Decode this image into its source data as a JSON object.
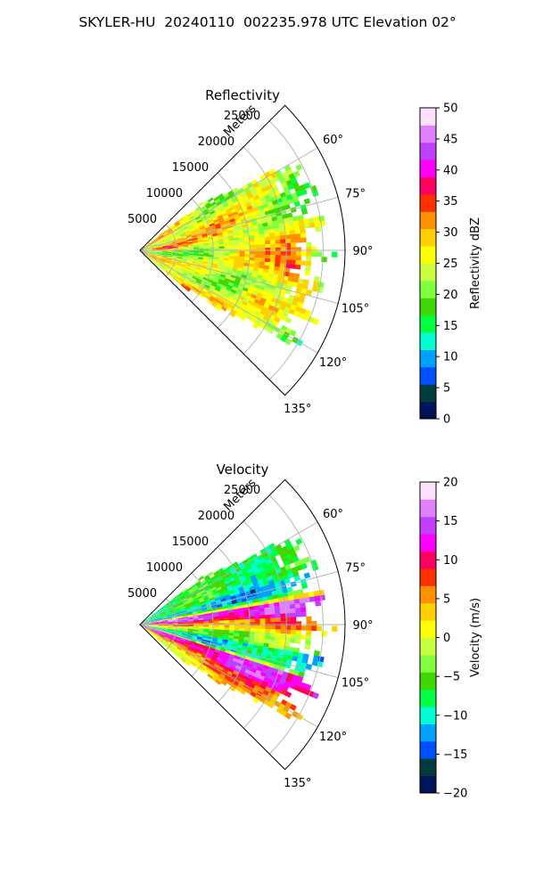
{
  "suptitle": "SKYLER-HU  20240110  002235.978 UTC Elevation 02°",
  "colors": {
    "reflectivity_scale": [
      "#00145a",
      "#003c3c",
      "#0050ff",
      "#00a0ff",
      "#00ffd0",
      "#00ff40",
      "#40d800",
      "#80ff40",
      "#c8ff40",
      "#ffff00",
      "#ffd000",
      "#ff9000",
      "#ff3000",
      "#ff0060",
      "#ff00ff",
      "#c040ff",
      "#e080ff",
      "#ffe0ff"
    ],
    "velocity_scale": [
      "#00145a",
      "#003c3c",
      "#0050ff",
      "#00a0ff",
      "#00ffd0",
      "#00ff40",
      "#40d800",
      "#80ff40",
      "#c8ff40",
      "#ffff00",
      "#ffd000",
      "#ff9000",
      "#ff3000",
      "#ff0060",
      "#ff00ff",
      "#c040ff",
      "#e080ff",
      "#ffe0ff"
    ]
  },
  "chart_data": [
    {
      "type": "heatmap",
      "title": "Reflectivity",
      "projection": "polar-sector",
      "theta_range_deg": [
        45,
        135
      ],
      "r_range_m": [
        0,
        28000
      ],
      "radial_ticks": [
        "5000",
        "10000",
        "15000",
        "20000",
        "25000"
      ],
      "radial_tick_values": [
        5000,
        10000,
        15000,
        20000,
        25000
      ],
      "radial_axis_label": "Meters",
      "angle_ticks": [
        "60°",
        "75°",
        "90°",
        "105°",
        "120°",
        "135°"
      ],
      "angle_tick_values": [
        60,
        75,
        90,
        105,
        120,
        135
      ],
      "colorbar": {
        "label": "Reflectivity dBZ",
        "range": [
          0,
          50
        ],
        "ticks": [
          "0",
          "5",
          "10",
          "15",
          "20",
          "25",
          "30",
          "35",
          "40",
          "45",
          "50"
        ],
        "tick_values": [
          0,
          5,
          10,
          15,
          20,
          25,
          30,
          35,
          40,
          45,
          50
        ]
      },
      "echo_extent": {
        "theta_start_deg": 52,
        "theta_end_deg": 130,
        "max_range_m": 26500
      },
      "dominant_value_range": [
        20,
        32
      ],
      "cores": [
        {
          "theta_deg": 84,
          "r_m": 3500,
          "value": 37
        },
        {
          "theta_deg": 98,
          "r_m": 21000,
          "value": 36
        },
        {
          "theta_deg": 112,
          "r_m": 17000,
          "value": 33
        }
      ]
    },
    {
      "type": "heatmap",
      "title": "Velocity",
      "projection": "polar-sector",
      "theta_range_deg": [
        45,
        135
      ],
      "r_range_m": [
        0,
        28000
      ],
      "radial_ticks": [
        "5000",
        "10000",
        "15000",
        "20000",
        "25000"
      ],
      "radial_tick_values": [
        5000,
        10000,
        15000,
        20000,
        25000
      ],
      "radial_axis_label": "Meters",
      "angle_ticks": [
        "60°",
        "75°",
        "90°",
        "105°",
        "120°",
        "135°"
      ],
      "angle_tick_values": [
        60,
        75,
        90,
        105,
        120,
        135
      ],
      "colorbar": {
        "label": "Velocity (m/s)",
        "range": [
          -20,
          20
        ],
        "ticks": [
          "−20",
          "−15",
          "−10",
          "−5",
          "0",
          "5",
          "10",
          "15",
          "20"
        ],
        "tick_values": [
          -20,
          -15,
          -10,
          -5,
          0,
          5,
          10,
          15,
          20
        ]
      },
      "echo_extent": {
        "theta_start_deg": 52,
        "theta_end_deg": 130,
        "max_range_m": 26500
      },
      "velocity_bands": [
        {
          "theta_start_deg": 52,
          "theta_end_deg": 72,
          "value": -7
        },
        {
          "theta_start_deg": 72,
          "theta_end_deg": 80,
          "value": -12
        },
        {
          "theta_start_deg": 80,
          "theta_end_deg": 87,
          "value": 14
        },
        {
          "theta_start_deg": 87,
          "theta_end_deg": 93,
          "value": 6
        },
        {
          "theta_start_deg": 93,
          "theta_end_deg": 100,
          "value": -3
        },
        {
          "theta_start_deg": 100,
          "theta_end_deg": 108,
          "value": -10
        },
        {
          "theta_start_deg": 108,
          "theta_end_deg": 116,
          "value": 13
        },
        {
          "theta_start_deg": 116,
          "theta_end_deg": 122,
          "value": 7
        },
        {
          "theta_start_deg": 122,
          "theta_end_deg": 130,
          "value": 2
        }
      ]
    }
  ]
}
